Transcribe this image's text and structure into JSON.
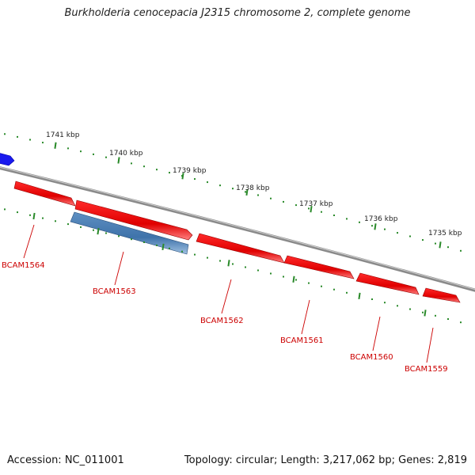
{
  "title": "Burkholderia cenocepacia J2315 chromosome 2, complete genome",
  "footer": {
    "accession": "Accession: NC_011001",
    "summary": "Topology: circular; Length: 3,217,062 bp; Genes: 2,819"
  },
  "colors": {
    "forward_gene": "#ee0000",
    "reverse_gene": "#4a7fb5",
    "offscreen_gene": "#1a1aee",
    "backbone": "#7a7a7a",
    "ticks": "#2a8a2a",
    "label": "#cc0000"
  },
  "scale_labels": [
    "1741 kbp",
    "1740 kbp",
    "1739 kbp",
    "1738 kbp",
    "1737 kbp",
    "1736 kbp",
    "1735 kbp"
  ],
  "genes": [
    {
      "label": "BCAM1564",
      "strand": "forward"
    },
    {
      "label": "BCAM1563",
      "strand": "reverse"
    },
    {
      "label": "BCAM1562",
      "strand": "forward"
    },
    {
      "label": "BCAM1561",
      "strand": "forward"
    },
    {
      "label": "BCAM1560",
      "strand": "forward"
    },
    {
      "label": "BCAM1559",
      "strand": "forward"
    }
  ]
}
